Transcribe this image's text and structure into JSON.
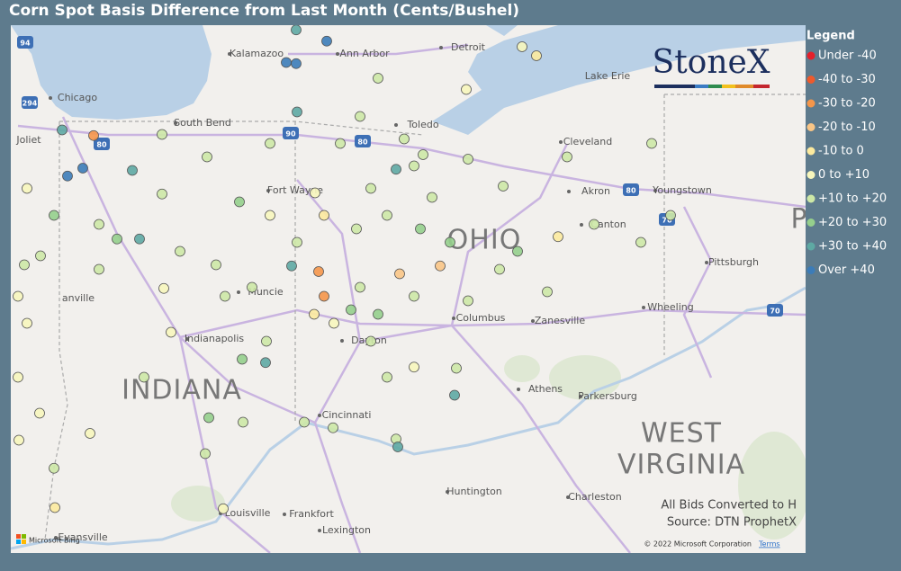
{
  "title": "Corn Spot Basis Difference from Last Month (Cents/Bushel)",
  "brand": "StoneX",
  "legend": {
    "title": "Legend",
    "items": [
      {
        "label": "Under -40",
        "color": "#e4202b"
      },
      {
        "label": "-40 to -30",
        "color": "#ee5a2c"
      },
      {
        "label": "-30 to -20",
        "color": "#f5964a"
      },
      {
        "label": "-20 to -10",
        "color": "#f9c586"
      },
      {
        "label": "-10 to 0",
        "color": "#fcea9e"
      },
      {
        "label": "0 to +10",
        "color": "#f7f6bc"
      },
      {
        "label": "+10 to +20",
        "color": "#cde8a6"
      },
      {
        "label": "+20 to +30",
        "color": "#95cf8c"
      },
      {
        "label": "+30 to +40",
        "color": "#5ea9a3"
      },
      {
        "label": "Over +40",
        "color": "#3c7cb8"
      }
    ]
  },
  "map": {
    "labels": [
      "Kalamazoo",
      "Ann Arbor",
      "Detroit",
      "Chicago",
      "South Bend",
      "Toledo",
      "Cleveland",
      "Lake Erie",
      "Akron",
      "Youngstown",
      "Joliet",
      "Fort Wayne",
      "Canton",
      "Pittsburgh",
      "Muncie",
      "anville",
      "Columbus",
      "Zanesville",
      "Wheeling",
      "Indianapolis",
      "Dayton",
      "Athens",
      "Parkersburg",
      "Cincinnati",
      "Huntington",
      "Charleston",
      "Louisville",
      "Frankfort",
      "Lexington",
      "Evansville"
    ],
    "states": [
      "OHIO",
      "INDIANA",
      "WEST",
      "VIRGINIA",
      "P"
    ],
    "shields": [
      "94",
      "294",
      "80",
      "90",
      "80",
      "80",
      "76",
      "70"
    ]
  },
  "points": {
    "lon": [
      -84.73,
      -84.39,
      -84.84,
      -84.73,
      -84.72,
      -87.33,
      -86.98,
      -87.27,
      -87.1,
      -86.55,
      -83.82,
      -82.84,
      -82.22,
      -82.06,
      -84.02,
      -83.62,
      -83.53,
      -84.24,
      -83.32,
      -84.48,
      -84.42,
      -83.58,
      -83.13,
      -81.82,
      -82.27,
      -82.97,
      -83.62,
      -83.6,
      -85.7,
      -85.74,
      -87.81,
      -87.58,
      -87.41,
      -85.54,
      -84.64,
      -84.32,
      -82.95,
      -83.42,
      -83.9,
      -84.31,
      -84.53,
      -85.06,
      -85.33,
      -85.07,
      -86.2,
      -86.72,
      -86.47,
      -87.42,
      -87.57,
      -87.82,
      -85.62,
      -85.22,
      -84.78,
      -84.72,
      -84.06,
      -83.72,
      -83.35,
      -83.02,
      -82.47,
      -81.94,
      -81.42,
      -80.9,
      -80.57,
      -80.78,
      -81.72,
      -82.43,
      -83.22,
      -83.9,
      -84.42,
      -84.52,
      -85.02,
      -85.36,
      -86.22,
      -86.92,
      -87.72,
      -87.75,
      -86.92,
      -86.02,
      -85.52,
      -84.02,
      -83.82,
      -84.12,
      -86.12,
      -86.42,
      -85.32,
      -83.72,
      -83.42,
      -82.82,
      -83.42,
      -82.82,
      -87.72,
      -87.82,
      -87.02,
      -87.42,
      -86.22,
      -85.72,
      -85.02
    ],
    "lat": [
      42.63,
      42.53,
      42.34,
      42.33,
      41.9,
      41.74,
      41.69,
      41.33,
      41.4,
      41.38,
      42.2,
      42.1,
      42.48,
      42.4,
      41.86,
      41.39,
      41.66,
      41.62,
      41.52,
      40.48,
      40.26,
      40.46,
      40.53,
      40.79,
      40.66,
      39.38,
      38.99,
      38.92,
      39.18,
      38.86,
      38.98,
      39.22,
      38.38,
      38.37,
      39.14,
      39.09,
      39.62,
      39.63,
      39.86,
      40.02,
      40.1,
      39.86,
      39.7,
      39.67,
      40.33,
      40.77,
      40.77,
      40.98,
      40.62,
      40.26,
      40.54,
      40.34,
      40.53,
      40.74,
      40.86,
      40.98,
      40.86,
      40.74,
      40.5,
      40.3,
      40.9,
      40.74,
      40.98,
      41.62,
      41.5,
      41.24,
      41.14,
      41.22,
      40.98,
      41.18,
      40.98,
      41.1,
      41.17,
      40.9,
      41.22,
      40.54,
      40.5,
      40.66,
      40.26,
      40.34,
      40.1,
      40.14,
      39.94,
      39.54,
      39.14,
      39.54,
      40.26,
      40.22,
      41.42,
      41.48,
      40.02,
      39.54,
      39.04,
      38.73,
      41.7,
      41.5,
      41.62
    ],
    "bin": [
      8,
      9,
      9,
      9,
      8,
      8,
      2,
      9,
      9,
      8,
      6,
      5,
      5,
      4,
      6,
      8,
      6,
      6,
      6,
      2,
      2,
      3,
      3,
      4,
      7,
      8,
      6,
      8,
      7,
      6,
      5,
      5,
      4,
      5,
      6,
      6,
      6,
      5,
      6,
      5,
      4,
      6,
      7,
      8,
      5,
      7,
      8,
      7,
      6,
      5,
      6,
      6,
      8,
      6,
      6,
      6,
      7,
      7,
      6,
      6,
      6,
      6,
      6,
      6,
      6,
      6,
      6,
      6,
      4,
      5,
      5,
      7,
      6,
      6,
      5,
      6,
      6,
      6,
      6,
      6,
      7,
      7,
      5,
      6,
      6,
      6,
      6,
      6,
      6,
      6,
      5,
      5,
      5,
      6,
      6,
      6,
      6
    ]
  },
  "notes": [
    "All Bids Converted to H",
    "Source: DTN ProphetX"
  ],
  "attribution": {
    "bing": "Microsoft Bing",
    "copyright": "© 2022 Microsoft Corporation",
    "terms": "Terms"
  }
}
